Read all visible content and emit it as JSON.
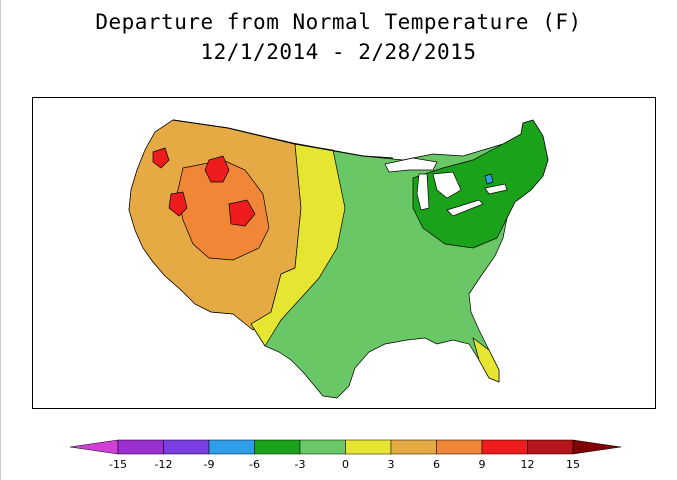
{
  "title": {
    "line1": "Departure from Normal Temperature (F)",
    "line2": "12/1/2014 - 2/28/2015"
  },
  "legend": {
    "labels": [
      "-15",
      "-12",
      "-9",
      "-6",
      "-3",
      "0",
      "3",
      "6",
      "9",
      "12",
      "15"
    ],
    "colors": [
      "#d13fd6",
      "#9c2fcf",
      "#7b3ee0",
      "#2f9ee8",
      "#1aa31a",
      "#69c765",
      "#e6e632",
      "#e6aa45",
      "#ef8638",
      "#ee1c1c",
      "#b5161a",
      "#800000"
    ]
  },
  "map": {
    "colors": {
      "warm_strong": "#ef8638",
      "warm": "#e6aa45",
      "hot": "#ee1c1c",
      "near_normal": "#e6e632",
      "cool": "#69c765",
      "cold": "#1aa31a",
      "very_cold": "#2f9ee8",
      "lake": "#ffffff",
      "outline": "#000000"
    }
  }
}
